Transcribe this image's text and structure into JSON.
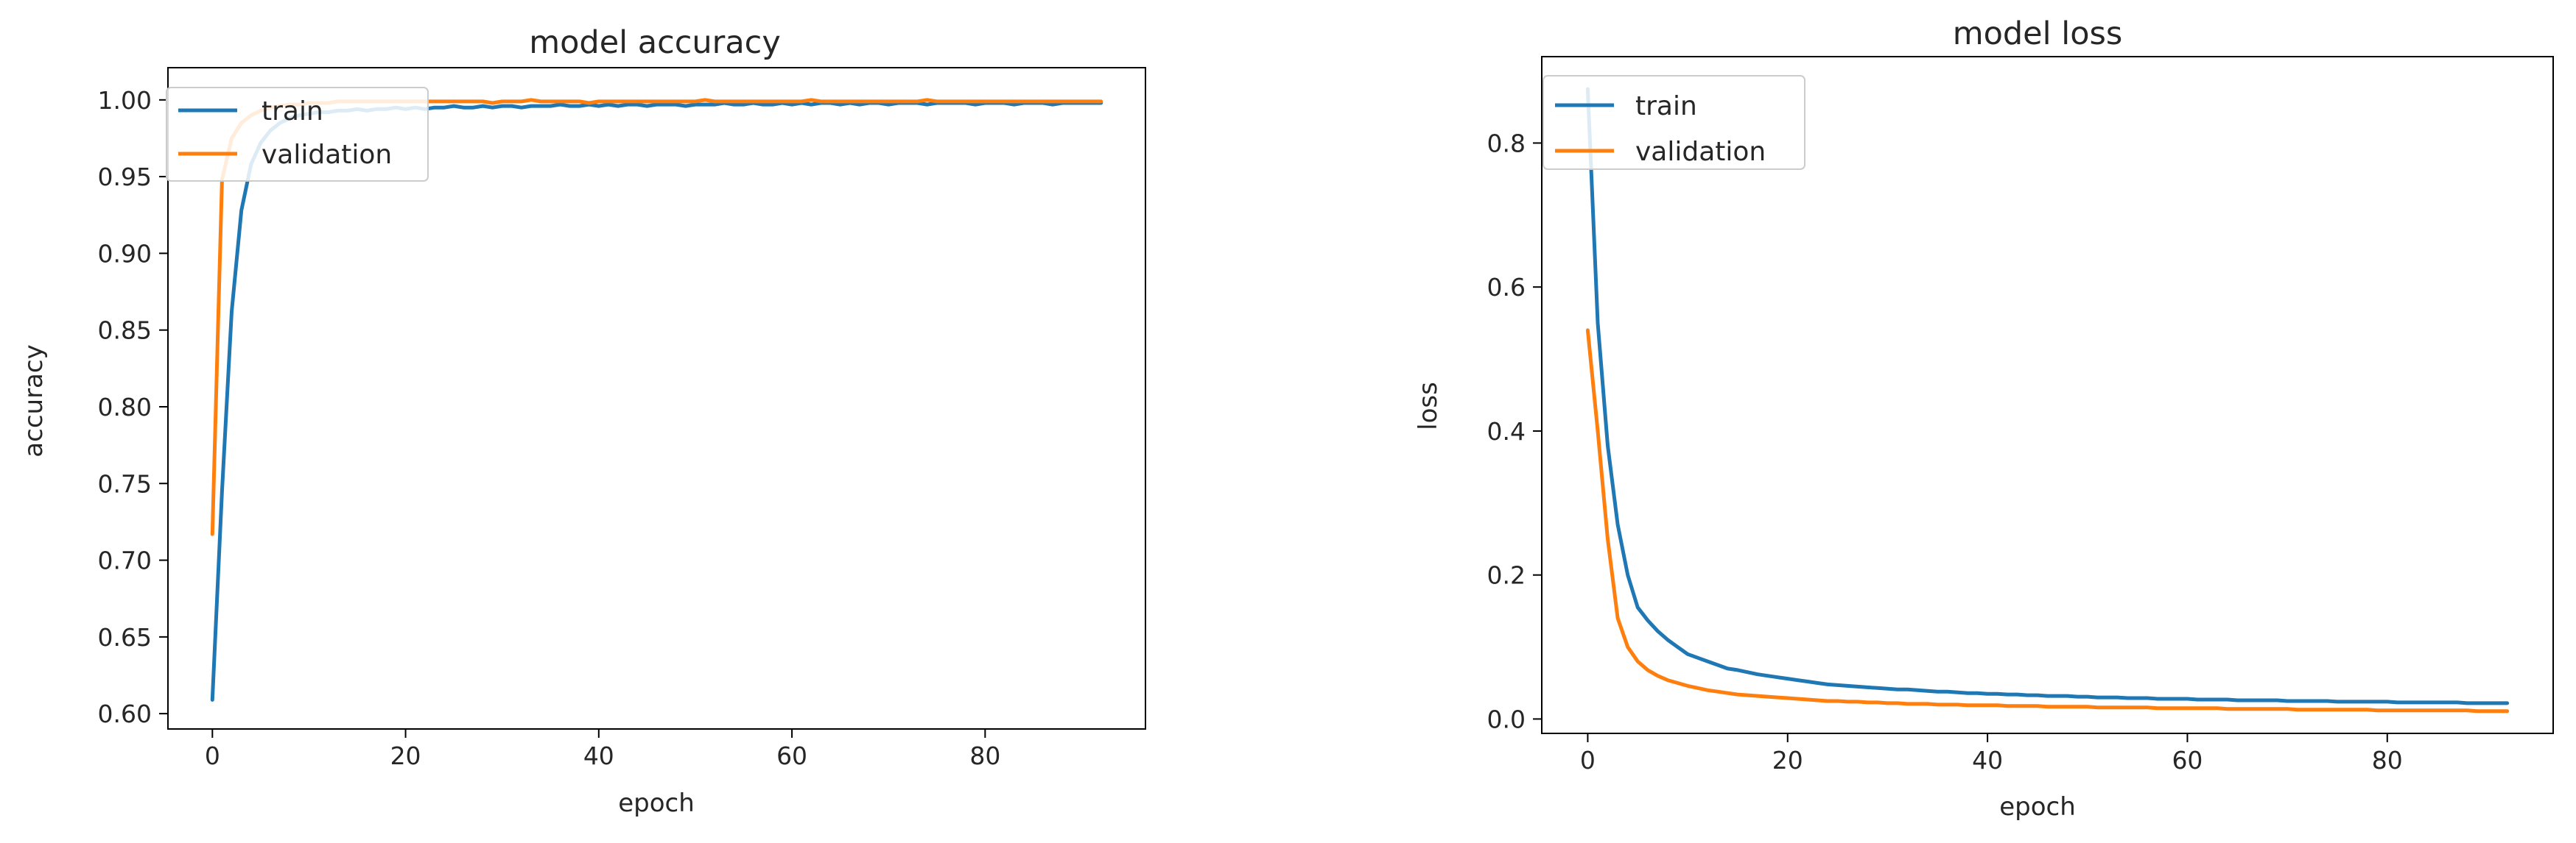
{
  "chart_data": [
    {
      "type": "line",
      "title": "model accuracy",
      "xlabel": "epoch",
      "ylabel": "accuracy",
      "xlim": [
        -4.6,
        96.6
      ],
      "ylim": [
        0.59,
        1.021
      ],
      "xticks": [
        0,
        20,
        40,
        60,
        80
      ],
      "xtick_labels": [
        "0",
        "20",
        "40",
        "60",
        "80"
      ],
      "yticks": [
        0.6,
        0.65,
        0.7,
        0.75,
        0.8,
        0.85,
        0.9,
        0.95,
        1.0
      ],
      "ytick_labels": [
        "0.60",
        "0.65",
        "0.70",
        "0.75",
        "0.80",
        "0.85",
        "0.90",
        "0.95",
        "1.00"
      ],
      "legend_position": "upper-left",
      "grid": false,
      "x": [
        0,
        1,
        2,
        3,
        4,
        5,
        6,
        7,
        8,
        9,
        10,
        11,
        12,
        13,
        14,
        15,
        16,
        17,
        18,
        19,
        20,
        21,
        22,
        23,
        24,
        25,
        26,
        27,
        28,
        29,
        30,
        31,
        32,
        33,
        34,
        35,
        36,
        37,
        38,
        39,
        40,
        41,
        42,
        43,
        44,
        45,
        46,
        47,
        48,
        49,
        50,
        51,
        52,
        53,
        54,
        55,
        56,
        57,
        58,
        59,
        60,
        61,
        62,
        63,
        64,
        65,
        66,
        67,
        68,
        69,
        70,
        71,
        72,
        73,
        74,
        75,
        76,
        77,
        78,
        79,
        80,
        81,
        82,
        83,
        84,
        85,
        86,
        87,
        88,
        89,
        90,
        91,
        92
      ],
      "series": [
        {
          "name": "train",
          "color": "#1f77b4",
          "values": [
            0.609,
            0.745,
            0.862,
            0.928,
            0.958,
            0.972,
            0.98,
            0.985,
            0.988,
            0.99,
            0.991,
            0.992,
            0.992,
            0.993,
            0.993,
            0.994,
            0.993,
            0.994,
            0.994,
            0.995,
            0.994,
            0.995,
            0.994,
            0.995,
            0.995,
            0.996,
            0.995,
            0.995,
            0.996,
            0.995,
            0.996,
            0.996,
            0.995,
            0.996,
            0.996,
            0.996,
            0.997,
            0.996,
            0.996,
            0.997,
            0.996,
            0.997,
            0.996,
            0.997,
            0.997,
            0.996,
            0.997,
            0.997,
            0.997,
            0.996,
            0.997,
            0.997,
            0.997,
            0.998,
            0.997,
            0.997,
            0.998,
            0.997,
            0.997,
            0.998,
            0.997,
            0.998,
            0.997,
            0.998,
            0.998,
            0.997,
            0.998,
            0.997,
            0.998,
            0.998,
            0.997,
            0.998,
            0.998,
            0.998,
            0.997,
            0.998,
            0.998,
            0.998,
            0.998,
            0.997,
            0.998,
            0.998,
            0.998,
            0.997,
            0.998,
            0.998,
            0.998,
            0.997,
            0.998,
            0.998,
            0.998,
            0.998,
            0.998
          ]
        },
        {
          "name": "validation",
          "color": "#ff7f0e",
          "values": [
            0.717,
            0.948,
            0.975,
            0.985,
            0.99,
            0.993,
            0.995,
            0.996,
            0.997,
            0.997,
            0.998,
            0.998,
            0.998,
            0.999,
            0.999,
            0.999,
            0.999,
            0.999,
            0.999,
            0.999,
            0.999,
            0.999,
            0.999,
            0.999,
            0.999,
            0.999,
            0.999,
            0.999,
            0.999,
            0.998,
            0.999,
            0.999,
            0.999,
            1.0,
            0.999,
            0.999,
            0.999,
            0.999,
            0.999,
            0.998,
            0.999,
            0.999,
            0.999,
            0.999,
            0.999,
            0.999,
            0.999,
            0.999,
            0.999,
            0.999,
            0.999,
            1.0,
            0.999,
            0.999,
            0.999,
            0.999,
            0.999,
            0.999,
            0.999,
            0.999,
            0.999,
            0.999,
            1.0,
            0.999,
            0.999,
            0.999,
            0.999,
            0.999,
            0.999,
            0.999,
            0.999,
            0.999,
            0.999,
            0.999,
            1.0,
            0.999,
            0.999,
            0.999,
            0.999,
            0.999,
            0.999,
            0.999,
            0.999,
            0.999,
            0.999,
            0.999,
            0.999,
            0.999,
            0.999,
            0.999,
            0.999,
            0.999,
            0.999
          ]
        }
      ]
    },
    {
      "type": "line",
      "title": "model loss",
      "xlabel": "epoch",
      "ylabel": "loss",
      "xlim": [
        -4.6,
        96.6
      ],
      "ylim": [
        -0.02,
        0.92
      ],
      "xticks": [
        0,
        20,
        40,
        60,
        80
      ],
      "xtick_labels": [
        "0",
        "20",
        "40",
        "60",
        "80"
      ],
      "yticks": [
        0.0,
        0.2,
        0.4,
        0.6,
        0.8
      ],
      "ytick_labels": [
        "0.0",
        "0.2",
        "0.4",
        "0.6",
        "0.8"
      ],
      "legend_position": "upper-left",
      "grid": false,
      "x": [
        0,
        1,
        2,
        3,
        4,
        5,
        6,
        7,
        8,
        9,
        10,
        11,
        12,
        13,
        14,
        15,
        16,
        17,
        18,
        19,
        20,
        21,
        22,
        23,
        24,
        25,
        26,
        27,
        28,
        29,
        30,
        31,
        32,
        33,
        34,
        35,
        36,
        37,
        38,
        39,
        40,
        41,
        42,
        43,
        44,
        45,
        46,
        47,
        48,
        49,
        50,
        51,
        52,
        53,
        54,
        55,
        56,
        57,
        58,
        59,
        60,
        61,
        62,
        63,
        64,
        65,
        66,
        67,
        68,
        69,
        70,
        71,
        72,
        73,
        74,
        75,
        76,
        77,
        78,
        79,
        80,
        81,
        82,
        83,
        84,
        85,
        86,
        87,
        88,
        89,
        90,
        91,
        92
      ],
      "series": [
        {
          "name": "train",
          "color": "#1f77b4",
          "values": [
            0.875,
            0.55,
            0.38,
            0.27,
            0.2,
            0.155,
            0.137,
            0.122,
            0.11,
            0.1,
            0.09,
            0.085,
            0.08,
            0.075,
            0.07,
            0.068,
            0.065,
            0.062,
            0.06,
            0.058,
            0.056,
            0.054,
            0.052,
            0.05,
            0.048,
            0.047,
            0.046,
            0.045,
            0.044,
            0.043,
            0.042,
            0.041,
            0.041,
            0.04,
            0.039,
            0.038,
            0.038,
            0.037,
            0.036,
            0.036,
            0.035,
            0.035,
            0.034,
            0.034,
            0.033,
            0.033,
            0.032,
            0.032,
            0.032,
            0.031,
            0.031,
            0.03,
            0.03,
            0.03,
            0.029,
            0.029,
            0.029,
            0.028,
            0.028,
            0.028,
            0.028,
            0.027,
            0.027,
            0.027,
            0.027,
            0.026,
            0.026,
            0.026,
            0.026,
            0.026,
            0.025,
            0.025,
            0.025,
            0.025,
            0.025,
            0.024,
            0.024,
            0.024,
            0.024,
            0.024,
            0.024,
            0.023,
            0.023,
            0.023,
            0.023,
            0.023,
            0.023,
            0.023,
            0.022,
            0.022,
            0.022,
            0.022,
            0.022
          ]
        },
        {
          "name": "validation",
          "color": "#ff7f0e",
          "values": [
            0.54,
            0.4,
            0.25,
            0.14,
            0.1,
            0.08,
            0.068,
            0.06,
            0.054,
            0.05,
            0.046,
            0.043,
            0.04,
            0.038,
            0.036,
            0.034,
            0.033,
            0.032,
            0.031,
            0.03,
            0.029,
            0.028,
            0.027,
            0.026,
            0.025,
            0.025,
            0.024,
            0.024,
            0.023,
            0.023,
            0.022,
            0.022,
            0.021,
            0.021,
            0.021,
            0.02,
            0.02,
            0.02,
            0.019,
            0.019,
            0.019,
            0.019,
            0.018,
            0.018,
            0.018,
            0.018,
            0.017,
            0.017,
            0.017,
            0.017,
            0.017,
            0.016,
            0.016,
            0.016,
            0.016,
            0.016,
            0.016,
            0.015,
            0.015,
            0.015,
            0.015,
            0.015,
            0.015,
            0.015,
            0.014,
            0.014,
            0.014,
            0.014,
            0.014,
            0.014,
            0.014,
            0.013,
            0.013,
            0.013,
            0.013,
            0.013,
            0.013,
            0.013,
            0.013,
            0.012,
            0.012,
            0.012,
            0.012,
            0.012,
            0.012,
            0.012,
            0.012,
            0.012,
            0.012,
            0.011,
            0.011,
            0.011,
            0.011
          ]
        }
      ]
    }
  ]
}
